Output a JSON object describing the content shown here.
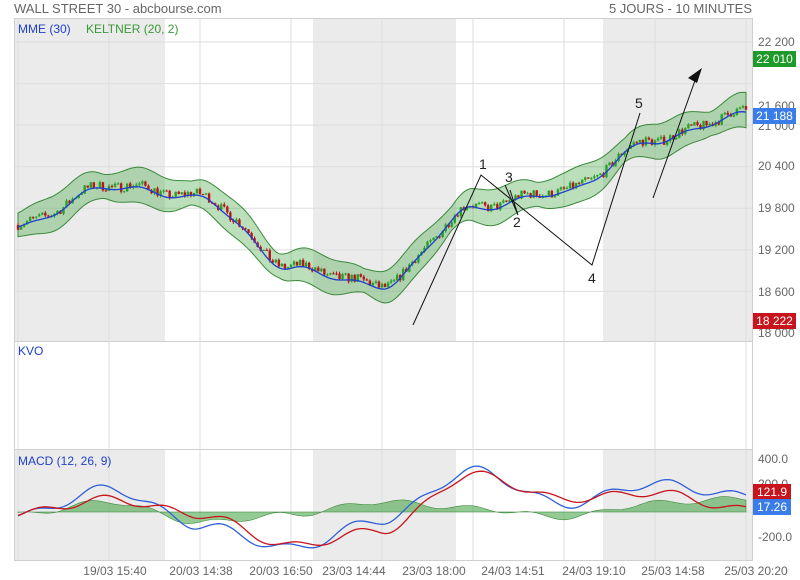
{
  "header": {
    "title": "WALL STREET 30 - abcbourse.com",
    "period": "5 JOURS - 10 MINUTES"
  },
  "main_panel": {
    "legend": [
      {
        "text": "MME (30)",
        "color": "#1f3fcf"
      },
      {
        "text": "KELTNER (20, 2)",
        "color": "#3a9a3a"
      }
    ],
    "y_ticks": [
      "22 200",
      "21 600",
      "21 000",
      "20 400",
      "19 800",
      "19 200",
      "18 600",
      "18 000"
    ],
    "price_badges": [
      {
        "text": "22 010",
        "color": "#1e9a2a"
      },
      {
        "text": "21 188",
        "color": "#3b7de8"
      },
      {
        "text": "18 222",
        "color": "#c8141c"
      }
    ],
    "wave_labels": [
      "1",
      "2",
      "3",
      "4",
      "5"
    ]
  },
  "kvo_panel": {
    "label": "KVO"
  },
  "macd_panel": {
    "label": "MACD (12, 26, 9)",
    "y_ticks": [
      "400.0",
      "200.0",
      "-200.0"
    ],
    "value_badges": [
      {
        "text": "121.9",
        "color": "#c8141c"
      },
      {
        "text": "17.26",
        "color": "#3b7de8"
      }
    ]
  },
  "x_axis": {
    "ticks": [
      "19/03 15:40",
      "20/03 14:38",
      "20/03 16:50",
      "23/03 14:44",
      "23/03 18:00",
      "24/03 14:51",
      "24/03 19:10",
      "25/03 14:58",
      "25/03 20:20"
    ]
  },
  "chart_data": {
    "type": "line",
    "instrument": "WALL STREET 30",
    "interval": "10 MINUTES",
    "x": [
      "19/03 15:40",
      "20/03 14:38",
      "20/03 16:50",
      "23/03 14:44",
      "23/03 18:00",
      "24/03 14:51",
      "24/03 19:10",
      "25/03 14:58",
      "25/03 20:20"
    ],
    "series": [
      {
        "name": "MME (30)",
        "values": [
          19560,
          20140,
          19980,
          18960,
          18700,
          19820,
          20060,
          20800,
          21188
        ]
      },
      {
        "name": "KELTNER (20, 2)",
        "values": [
          19560,
          20140,
          19980,
          18960,
          18700,
          19820,
          20060,
          20800,
          21188
        ]
      }
    ],
    "ylim": [
      18000,
      22200
    ],
    "macd": {
      "name": "MACD (12, 26, 9)",
      "macd_values": [
        -30,
        180,
        -100,
        -280,
        -60,
        320,
        60,
        220,
        121.9
      ],
      "signal_values": [
        -10,
        100,
        -20,
        -260,
        -140,
        290,
        100,
        150,
        17.26
      ],
      "ylim": [
        -200,
        400
      ]
    },
    "grid": true
  }
}
